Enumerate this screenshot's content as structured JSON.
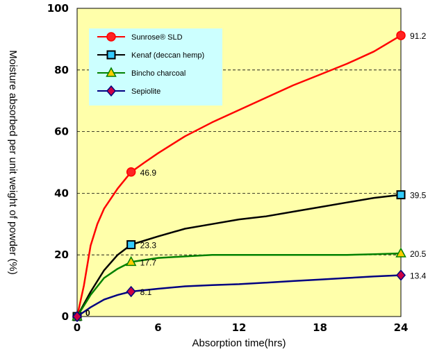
{
  "chart_data": {
    "type": "line",
    "xlabel": "Absorption time(hrs)",
    "ylabel": "Moisture absorbed per unit weight of powder (%)",
    "xlim": [
      0,
      24
    ],
    "ylim": [
      0,
      100
    ],
    "xticks": [
      0,
      6,
      12,
      18,
      24
    ],
    "yticks": [
      0,
      20,
      40,
      60,
      80,
      100
    ],
    "grid": "horizontal dashed",
    "legend_position": "top-left",
    "colors": {
      "plot_background": "#FFFFAA",
      "legend_background": "#CCFFFF"
    },
    "series": [
      {
        "name": "Sunrose® SLD",
        "color": "#FF0000",
        "marker": "circle",
        "marker_fill": "#FF2222",
        "curve": [
          [
            0,
            0
          ],
          [
            0.5,
            10
          ],
          [
            1,
            23
          ],
          [
            1.5,
            30
          ],
          [
            2,
            35
          ],
          [
            3,
            41.5
          ],
          [
            4,
            46.9
          ],
          [
            5,
            50
          ],
          [
            6,
            53
          ],
          [
            8,
            58.5
          ],
          [
            10,
            63
          ],
          [
            12,
            67
          ],
          [
            14,
            71
          ],
          [
            16,
            75
          ],
          [
            18,
            78.5
          ],
          [
            20,
            82
          ],
          [
            22,
            86
          ],
          [
            24,
            91.2
          ]
        ],
        "markers": [
          [
            0,
            0
          ],
          [
            4,
            46.9
          ],
          [
            24,
            91.2
          ]
        ],
        "labels": [
          "",
          "46.9",
          "91.2"
        ]
      },
      {
        "name": "Kenaf (deccan hemp)",
        "color": "#000000",
        "marker": "square",
        "marker_fill": "#33CCFF",
        "curve": [
          [
            0,
            0
          ],
          [
            1,
            8
          ],
          [
            2,
            15
          ],
          [
            3,
            20
          ],
          [
            4,
            23.3
          ],
          [
            6,
            26
          ],
          [
            8,
            28.5
          ],
          [
            10,
            30
          ],
          [
            12,
            31.5
          ],
          [
            14,
            32.5
          ],
          [
            16,
            34
          ],
          [
            18,
            35.5
          ],
          [
            20,
            37
          ],
          [
            22,
            38.5
          ],
          [
            24,
            39.5
          ]
        ],
        "markers": [
          [
            0,
            0
          ],
          [
            4,
            23.3
          ],
          [
            24,
            39.5
          ]
        ],
        "labels": [
          "",
          "23.3",
          "39.5"
        ]
      },
      {
        "name": "Bincho charcoal",
        "color": "#008000",
        "marker": "triangle",
        "marker_fill": "#FFCC00",
        "curve": [
          [
            0,
            0
          ],
          [
            1,
            7
          ],
          [
            2,
            12.5
          ],
          [
            3,
            15.5
          ],
          [
            4,
            17.7
          ],
          [
            6,
            19
          ],
          [
            8,
            19.5
          ],
          [
            10,
            20
          ],
          [
            12,
            20
          ],
          [
            14,
            20
          ],
          [
            16,
            20
          ],
          [
            18,
            20
          ],
          [
            20,
            20
          ],
          [
            22,
            20.2
          ],
          [
            24,
            20.5
          ]
        ],
        "markers": [
          [
            0,
            0
          ],
          [
            4,
            17.7
          ],
          [
            24,
            20.5
          ]
        ],
        "labels": [
          "",
          "17.7",
          "20.5"
        ]
      },
      {
        "name": "Sepiolite",
        "color": "#000080",
        "marker": "diamond",
        "marker_fill": "#CC0044",
        "curve": [
          [
            0,
            0
          ],
          [
            1,
            3
          ],
          [
            2,
            5.5
          ],
          [
            3,
            7
          ],
          [
            4,
            8.1
          ],
          [
            6,
            9
          ],
          [
            8,
            9.8
          ],
          [
            10,
            10.2
          ],
          [
            12,
            10.5
          ],
          [
            14,
            11
          ],
          [
            16,
            11.5
          ],
          [
            18,
            12
          ],
          [
            20,
            12.5
          ],
          [
            22,
            13
          ],
          [
            24,
            13.4
          ]
        ],
        "markers": [
          [
            0,
            0
          ],
          [
            4,
            8.1
          ],
          [
            24,
            13.4
          ]
        ],
        "labels": [
          "0",
          "8.1",
          "13.4"
        ]
      }
    ]
  }
}
